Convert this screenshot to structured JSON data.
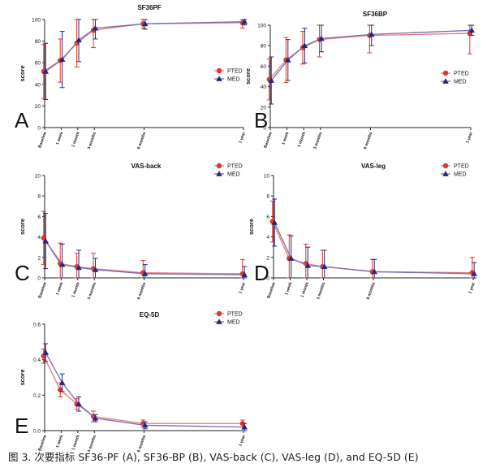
{
  "figure": {
    "caption": "图 3.  次要指标 SF36-PF (A), SF36-BP (B), VAS-back (C), VAS-leg (D), and EQ-5D (E)",
    "colors": {
      "pted": "#e8332a",
      "med": "#1f2a7a",
      "pted_line": "#e87a78",
      "med_line": "#7a6fb0",
      "axis": "#222222"
    }
  },
  "chart_data": [
    {
      "type": "line",
      "panel_letter": "A",
      "title": "SF36PF",
      "ylabel": "score",
      "xlabel": "",
      "ylim": [
        0,
        100
      ],
      "yticks": [
        "0",
        "20",
        "40",
        "60",
        "80",
        "100"
      ],
      "ytick_values": [
        0,
        20,
        40,
        60,
        80,
        100
      ],
      "x": [
        0,
        1,
        2,
        3,
        6,
        12
      ],
      "xtick_labels": [
        "Baseline",
        "1 week",
        "1 month",
        "3 months",
        "6 months",
        "1 year"
      ],
      "legend": "right",
      "series": [
        {
          "name": "PTED",
          "values": [
            52,
            62,
            78,
            90,
            96,
            97
          ],
          "err": [
            25,
            20,
            22,
            16,
            4,
            5
          ]
        },
        {
          "name": "MED",
          "values": [
            52,
            63,
            81,
            92,
            96,
            98
          ],
          "err": [
            26,
            26,
            20,
            10,
            5,
            3
          ]
        }
      ]
    },
    {
      "type": "line",
      "panel_letter": "B",
      "title": "SF36BP",
      "ylabel": "score",
      "xlabel": "",
      "ylim": [
        0,
        100
      ],
      "yticks": [
        "0",
        "20",
        "40",
        "60",
        "80",
        "100"
      ],
      "ytick_values": [
        0,
        20,
        40,
        60,
        80,
        100
      ],
      "x": [
        0,
        1,
        2,
        3,
        6,
        12
      ],
      "xtick_labels": [
        "Baseline",
        "1 week",
        "1 month",
        "3 months",
        "6 months",
        "1 year"
      ],
      "legend": "right",
      "series": [
        {
          "name": "PTED",
          "values": [
            47,
            66,
            78,
            86,
            90,
            92
          ],
          "err": [
            20,
            22,
            16,
            17,
            17,
            20
          ]
        },
        {
          "name": "MED",
          "values": [
            46,
            66,
            80,
            87,
            91,
            95
          ],
          "err": [
            23,
            20,
            17,
            13,
            11,
            5
          ]
        }
      ]
    },
    {
      "type": "line",
      "panel_letter": "C",
      "title": "VAS-back",
      "ylabel": "score",
      "xlabel": "",
      "ylim": [
        0,
        10
      ],
      "yticks": [
        "0",
        "2",
        "4",
        "6",
        "8",
        "10"
      ],
      "ytick_values": [
        0,
        2,
        4,
        6,
        8,
        10
      ],
      "x": [
        0,
        1,
        2,
        3,
        6,
        12
      ],
      "xtick_labels": [
        "Baseline",
        "1 week",
        "1 month",
        "3 months",
        "6 months",
        "1 year"
      ],
      "legend": "top-right",
      "series": [
        {
          "name": "PTED",
          "values": [
            3.9,
            1.4,
            1.1,
            0.9,
            0.5,
            0.4
          ],
          "err": [
            2.6,
            2.0,
            1.3,
            1.5,
            1.2,
            1.4
          ]
        },
        {
          "name": "MED",
          "values": [
            3.6,
            1.3,
            1.0,
            0.8,
            0.4,
            0.3
          ],
          "err": [
            2.7,
            2.0,
            1.7,
            1.1,
            0.9,
            0.8
          ]
        }
      ]
    },
    {
      "type": "line",
      "panel_letter": "D",
      "title": "VAS-leg",
      "ylabel": "score",
      "xlabel": "",
      "ylim": [
        0,
        10
      ],
      "yticks": [
        "0",
        "2",
        "4",
        "6",
        "8",
        "10"
      ],
      "ytick_values": [
        0,
        2,
        4,
        6,
        8,
        10
      ],
      "x": [
        0,
        1,
        2,
        3,
        6,
        12
      ],
      "xtick_labels": [
        "Baseline",
        "1 week",
        "1 month",
        "3 months",
        "6 months",
        "1 year"
      ],
      "legend": "top-right",
      "series": [
        {
          "name": "PTED",
          "values": [
            5.5,
            1.9,
            1.4,
            1.1,
            0.6,
            0.5
          ],
          "err": [
            2.0,
            2.3,
            1.9,
            1.6,
            1.2,
            1.5
          ]
        },
        {
          "name": "MED",
          "values": [
            5.4,
            1.9,
            1.2,
            1.1,
            0.6,
            0.4
          ],
          "err": [
            2.3,
            2.2,
            1.8,
            1.6,
            1.2,
            1.1
          ]
        }
      ]
    },
    {
      "type": "line",
      "panel_letter": "E",
      "title": "EQ-5D",
      "ylabel": "score",
      "xlabel": "",
      "ylim": [
        0,
        0.6
      ],
      "yticks": [
        "0.0",
        "0.2",
        "0.4",
        "0.6"
      ],
      "ytick_values": [
        0,
        0.2,
        0.4,
        0.6
      ],
      "x": [
        0,
        1,
        2,
        3,
        6,
        12
      ],
      "xtick_labels": [
        "Baseline",
        "1 week",
        "1 month",
        "3 months",
        "6 months",
        "1 year"
      ],
      "legend": "top-right",
      "series": [
        {
          "name": "PTED",
          "values": [
            0.42,
            0.23,
            0.15,
            0.08,
            0.04,
            0.04
          ],
          "err": [
            0.04,
            0.04,
            0.03,
            0.03,
            0.02,
            0.02
          ]
        },
        {
          "name": "MED",
          "values": [
            0.44,
            0.27,
            0.15,
            0.07,
            0.03,
            0.02
          ],
          "err": [
            0.05,
            0.05,
            0.04,
            0.02,
            0.02,
            0.02
          ]
        }
      ]
    }
  ]
}
